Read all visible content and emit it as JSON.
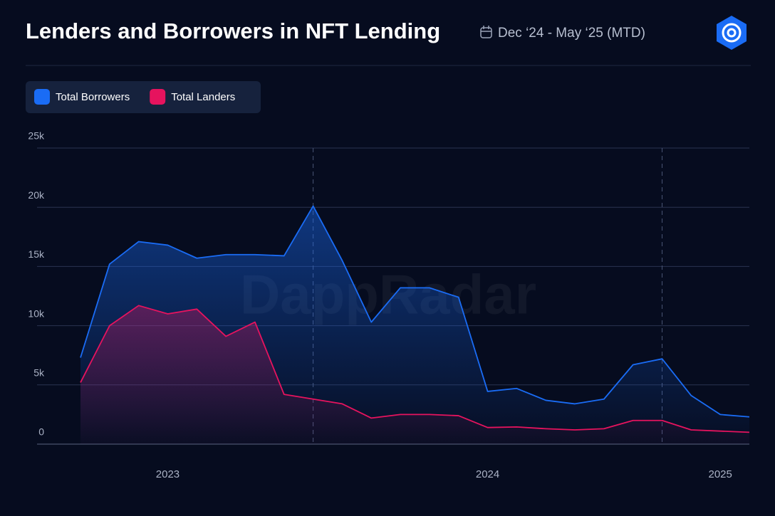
{
  "chart_data": {
    "type": "area",
    "title": "Lenders and Borrowers in NFT Lending",
    "subtitle": "Dec ‘24 - May ‘25 (MTD)",
    "watermark": "DappRadar",
    "categories": [
      null,
      null,
      null,
      "2023",
      null,
      null,
      null,
      null,
      null,
      null,
      null,
      null,
      null,
      null,
      "2024",
      null,
      null,
      null,
      null,
      null,
      null,
      null,
      "2025",
      null
    ],
    "series": [
      {
        "name": "Total Borrowers",
        "color": "#1a6cf5",
        "values": [
          7300,
          15200,
          17100,
          16800,
          15700,
          16000,
          16000,
          15900,
          20100,
          15500,
          10300,
          13200,
          13200,
          12400,
          4450,
          4700,
          3700,
          3400,
          3800,
          6700,
          7200,
          4100,
          2500,
          2300
        ]
      },
      {
        "name": "Total Landers",
        "color": "#e6135e",
        "values": [
          5200,
          10000,
          11700,
          11000,
          11400,
          9100,
          10300,
          4200,
          3800,
          3400,
          2200,
          2500,
          2500,
          2400,
          1400,
          1450,
          1300,
          1200,
          1300,
          2000,
          2000,
          1200,
          1100,
          1000
        ]
      }
    ],
    "ylim": [
      0,
      25000
    ],
    "yticks": [
      0,
      {
        "value": 5000,
        "label": "5k"
      },
      {
        "value": 10000,
        "label": "10k"
      },
      {
        "value": 15000,
        "label": "15k"
      },
      {
        "value": 20000,
        "label": "20k"
      },
      {
        "value": 25000,
        "label": "25k"
      }
    ],
    "grid": true,
    "legend": "top-left"
  }
}
